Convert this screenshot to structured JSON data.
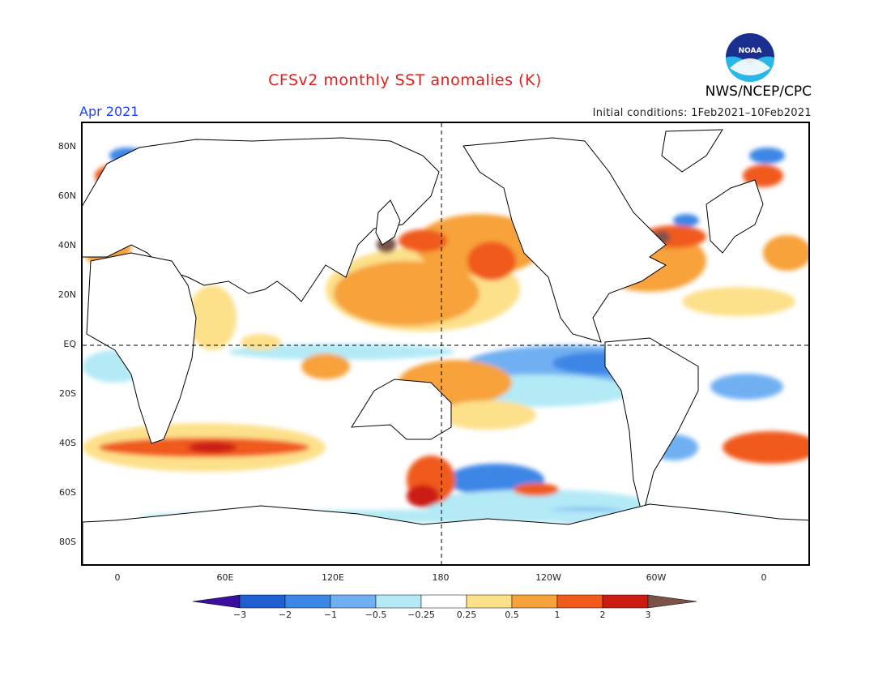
{
  "header": {
    "title": "CFSv2 monthly SST anomalies (K)",
    "agency": "NWS/NCEP/CPC",
    "month": "Apr 2021",
    "initial_conditions": "Initial conditions: 1Feb2021–10Feb2021",
    "logo_text": "NOAA"
  },
  "axes": {
    "y_labels": [
      "80N",
      "60N",
      "40N",
      "20N",
      "EQ",
      "20S",
      "40S",
      "60S",
      "80S"
    ],
    "x_labels": [
      "0",
      "60E",
      "120E",
      "180",
      "120W",
      "60W",
      "0"
    ]
  },
  "colorbar": {
    "labels": [
      "−3",
      "−2",
      "−1",
      "−0.5",
      "−0.25",
      "0.25",
      "0.5",
      "1",
      "2",
      "3"
    ],
    "colors": [
      "#3a0fa0",
      "#1f5fd0",
      "#3c86e6",
      "#6fb0f2",
      "#b4eaf6",
      "#ffffff",
      "#fde08a",
      "#f7a23a",
      "#f05a1a",
      "#cc1c12",
      "#7a5248"
    ]
  },
  "colors": {
    "title": "#e0201c",
    "month": "#1f3fff"
  }
}
